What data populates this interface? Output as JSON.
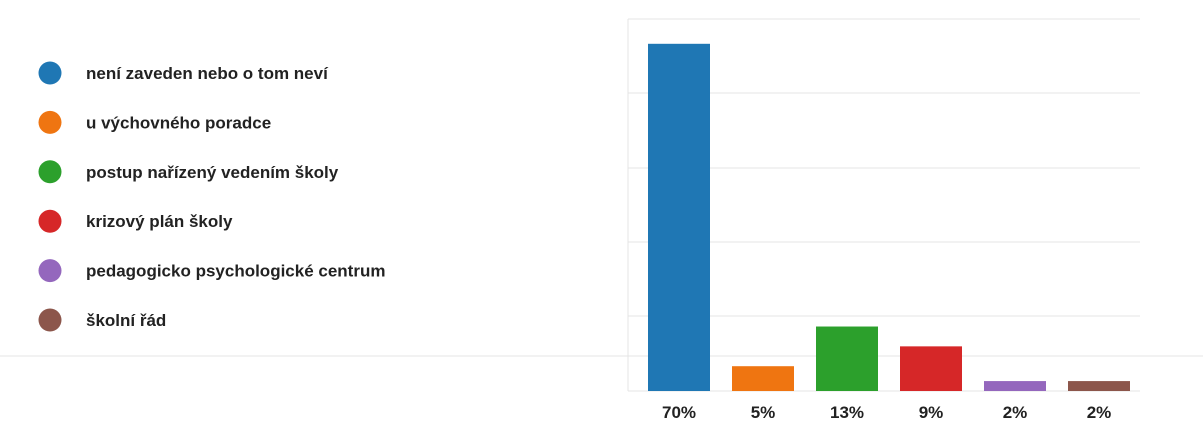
{
  "chart_data": {
    "type": "bar",
    "categories": [
      "není zaveden nebo o tom neví",
      "u výchovného poradce",
      "postup nařízený vedením školy",
      "krizový plán školy",
      "pedagogicko psychologické centrum",
      "školní řád"
    ],
    "values": [
      70,
      5,
      13,
      9,
      2,
      2
    ],
    "value_labels": [
      "70%",
      "5%",
      "13%",
      "9%",
      "2%",
      "2%"
    ],
    "colors": [
      "#1f77b4",
      "#ef7511",
      "#2ca02c",
      "#d62728",
      "#9467bd",
      "#8c564b"
    ],
    "unit": "%",
    "ylim": [
      0,
      75
    ],
    "grid": true,
    "legend_position": "left",
    "title": "",
    "xlabel": "",
    "ylabel": ""
  }
}
